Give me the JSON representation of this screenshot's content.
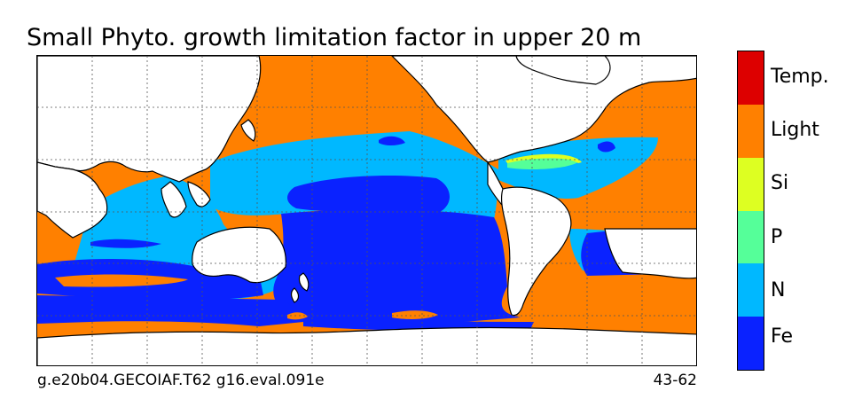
{
  "figure": {
    "title": "Small Phyto. growth limitation factor in upper 20 m",
    "footer_left": "g.e20b04.GECOIAF.T62 g16.eval.091e",
    "footer_right": "43-62"
  },
  "legend": [
    {
      "label": "Fe",
      "color": "#0a22ff"
    },
    {
      "label": "N",
      "color": "#00b8ff"
    },
    {
      "label": "P",
      "color": "#55ff99"
    },
    {
      "label": "Si",
      "color": "#ddff22"
    },
    {
      "label": "Light",
      "color": "#ff8000"
    },
    {
      "label": "Temp.",
      "color": "#dd0000"
    }
  ],
  "colors": {
    "land": "#ffffff",
    "coast": "#000000",
    "grid": "#555555"
  }
}
